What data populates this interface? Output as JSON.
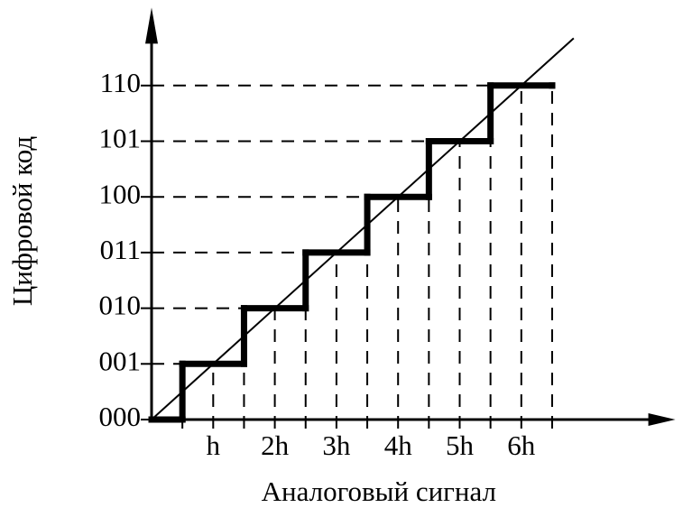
{
  "chart_data": {
    "type": "step",
    "xlabel": "Аналоговый сигнал",
    "ylabel": "Цифровой код",
    "x": [
      0,
      0.5,
      1.5,
      2.5,
      3.5,
      4.5,
      5.5,
      6.5
    ],
    "values": [
      0,
      1,
      2,
      3,
      4,
      5,
      6,
      6
    ],
    "color": "#000000",
    "ideal": {
      "x": [
        0,
        6.85
      ],
      "values": [
        0,
        6.85
      ]
    },
    "xlim": [
      0,
      8.5
    ],
    "ylim": [
      0,
      7.4
    ],
    "xticks": [
      {
        "value": 1,
        "label": "h"
      },
      {
        "value": 2,
        "label": "2h"
      },
      {
        "value": 3,
        "label": "3h"
      },
      {
        "value": 4,
        "label": "4h"
      },
      {
        "value": 5,
        "label": "5h"
      },
      {
        "value": 6,
        "label": "6h"
      }
    ],
    "yticks": [
      {
        "value": 0,
        "label": "000"
      },
      {
        "value": 1,
        "label": "001"
      },
      {
        "value": 2,
        "label": "010"
      },
      {
        "value": 3,
        "label": "011"
      },
      {
        "value": 4,
        "label": "100"
      },
      {
        "value": 5,
        "label": "101"
      },
      {
        "value": 6,
        "label": "110"
      }
    ]
  }
}
